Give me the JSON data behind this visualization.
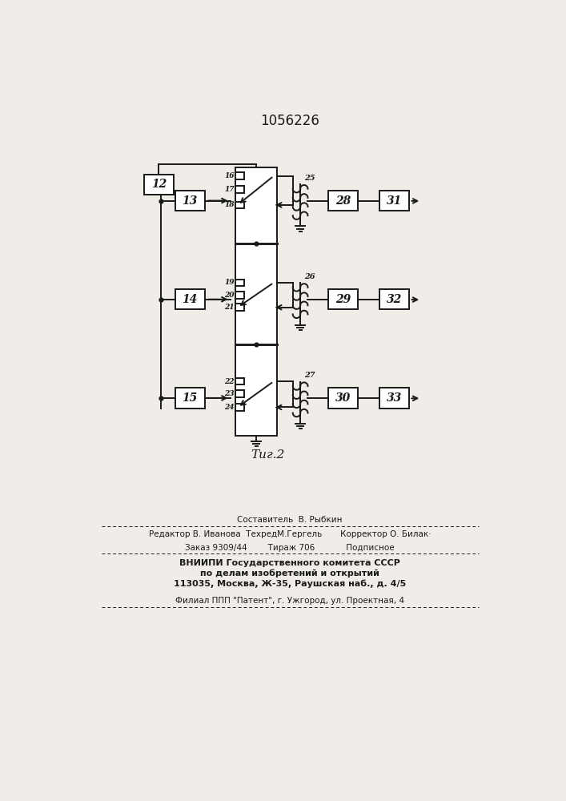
{
  "patent_number": "1056226",
  "fig_label": "Τиг.2",
  "bg_color": "#f0ede8",
  "lc": "#1a1a1a",
  "footer_line1": "Составитель  В. Рыбкин",
  "footer_line2": "Редактор В. Иванова  ТехредМ.Гергель       Корректор О. Билак·",
  "footer_line3": "Заказ 9309/44        Тираж 706            Подписное",
  "footer_line4": "ВНИИПИ Государственного комитета СССР",
  "footer_line5": "по делам изобретений и открытий",
  "footer_line6": "113035, Москва, Ж-35, Раушская наб., д. 4/5",
  "footer_line7": "Филиал ППП \"Патент\", г. Ужгород, ул. Проектная, 4"
}
